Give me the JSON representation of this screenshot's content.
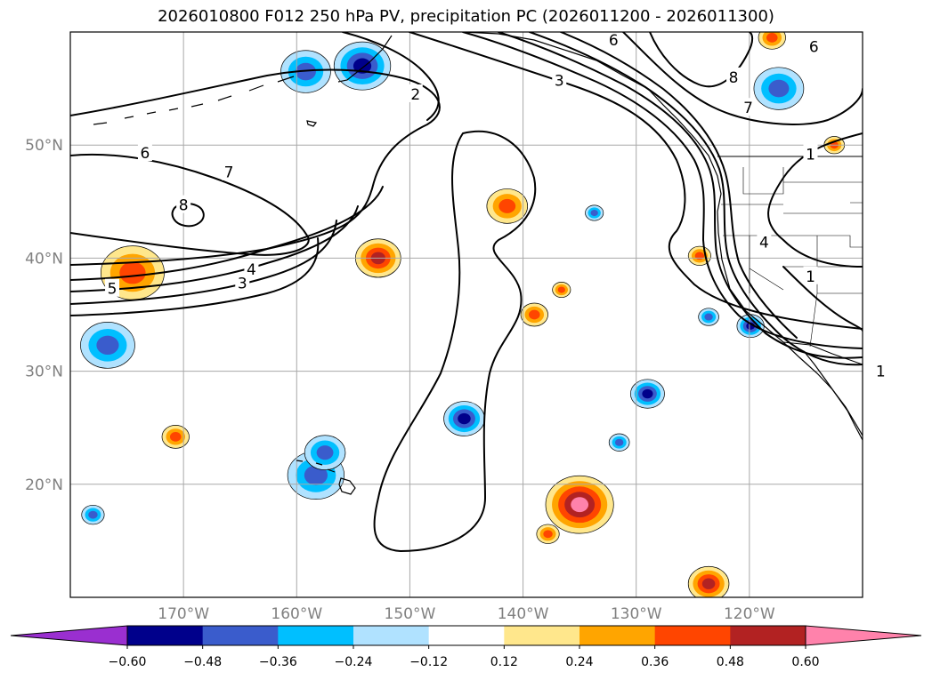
{
  "title": "2026010800 F012 250 hPa PV, precipitation PC (2026011200 - 2026011300)",
  "chart_data": {
    "type": "map",
    "projection": "plate carree",
    "lon_range": [
      -180,
      -110
    ],
    "lat_range": [
      10,
      60
    ],
    "x_ticks": [
      {
        "lon": -170,
        "label": "170°W"
      },
      {
        "lon": -160,
        "label": "160°W"
      },
      {
        "lon": -150,
        "label": "150°W"
      },
      {
        "lon": -140,
        "label": "140°W"
      },
      {
        "lon": -130,
        "label": "130°W"
      },
      {
        "lon": -120,
        "label": "120°W"
      }
    ],
    "y_ticks": [
      {
        "lat": 20,
        "label": "20°N"
      },
      {
        "lat": 30,
        "label": "30°N"
      },
      {
        "lat": 40,
        "label": "40°N"
      },
      {
        "lat": 50,
        "label": "50°N"
      }
    ],
    "grid": true,
    "pv_contours": {
      "variable": "250 hPa PV",
      "levels": [
        1,
        2,
        3,
        4,
        5,
        6,
        7,
        8
      ],
      "labels": [
        {
          "text": "2",
          "lon": -149.5,
          "lat": 54.5
        },
        {
          "text": "3",
          "lon": -136.8,
          "lat": 55.7
        },
        {
          "text": "6",
          "lon": -173.4,
          "lat": 49.3
        },
        {
          "text": "7",
          "lon": -166.0,
          "lat": 47.6
        },
        {
          "text": "8",
          "lon": -170.0,
          "lat": 44.7
        },
        {
          "text": "4",
          "lon": -164.0,
          "lat": 39.0
        },
        {
          "text": "3",
          "lon": -164.8,
          "lat": 37.8
        },
        {
          "text": "5",
          "lon": -176.3,
          "lat": 37.3
        },
        {
          "text": "6",
          "lon": -132.0,
          "lat": 59.3
        },
        {
          "text": "8",
          "lon": -121.4,
          "lat": 56.0
        },
        {
          "text": "7",
          "lon": -120.1,
          "lat": 53.3
        },
        {
          "text": "6",
          "lon": -114.3,
          "lat": 58.7
        },
        {
          "text": "1",
          "lon": -114.6,
          "lat": 49.2
        },
        {
          "text": "4",
          "lon": -118.7,
          "lat": 41.4
        },
        {
          "text": "1",
          "lon": -114.6,
          "lat": 38.4
        },
        {
          "text": "1",
          "lon": -108.4,
          "lat": 30.0
        }
      ]
    },
    "shading": {
      "variable": "precipitation PC",
      "colorbar": {
        "extend": "both",
        "bounds": [
          -0.6,
          -0.48,
          -0.36,
          -0.24,
          -0.12,
          0.12,
          0.24,
          0.36,
          0.48,
          0.6
        ],
        "tick_labels": [
          "−0.60",
          "−0.48",
          "−0.36",
          "−0.24",
          "−0.12",
          "0.12",
          "0.24",
          "0.36",
          "0.48",
          "0.60"
        ],
        "colors": [
          "#9a2fd0",
          "#00008b",
          "#3a5ccc",
          "#00bfff",
          "#b0e2ff",
          "#ffffff",
          "#ffe78c",
          "#ffa500",
          "#ff4500",
          "#b22222",
          "#ff82ab"
        ]
      },
      "blobs": [
        {
          "lon": -170.7,
          "lat": 24.2,
          "r": 1.2,
          "level": 0.36
        },
        {
          "lon": -178.0,
          "lat": 17.3,
          "r": 1.0,
          "level": -0.36
        },
        {
          "lon": -158.3,
          "lat": 20.8,
          "r": 2.5,
          "level": -0.36
        },
        {
          "lon": -157.5,
          "lat": 22.8,
          "r": 1.8,
          "level": -0.36
        },
        {
          "lon": -145.2,
          "lat": 25.8,
          "r": 1.8,
          "level": -0.48
        },
        {
          "lon": -129.0,
          "lat": 28.0,
          "r": 1.5,
          "level": -0.48
        },
        {
          "lon": -135.0,
          "lat": 18.2,
          "r": 3.0,
          "level": 0.6
        },
        {
          "lon": -137.8,
          "lat": 15.6,
          "r": 1.0,
          "level": 0.36
        },
        {
          "lon": -123.6,
          "lat": 11.2,
          "r": 1.8,
          "level": 0.48
        },
        {
          "lon": -152.8,
          "lat": 40.0,
          "r": 2.0,
          "level": 0.48
        },
        {
          "lon": -141.4,
          "lat": 44.6,
          "r": 1.8,
          "level": 0.36
        },
        {
          "lon": -139.0,
          "lat": 35.0,
          "r": 1.2,
          "level": 0.36
        },
        {
          "lon": -136.6,
          "lat": 37.2,
          "r": 0.8,
          "level": 0.36
        },
        {
          "lon": -124.4,
          "lat": 40.2,
          "r": 1.0,
          "level": 0.36
        },
        {
          "lon": -133.7,
          "lat": 44.0,
          "r": 0.8,
          "level": -0.36
        },
        {
          "lon": -174.5,
          "lat": 38.7,
          "r": 2.8,
          "level": 0.36
        },
        {
          "lon": -176.7,
          "lat": 32.3,
          "r": 2.4,
          "level": -0.36
        },
        {
          "lon": -159.2,
          "lat": 56.5,
          "r": 2.2,
          "level": -0.36
        },
        {
          "lon": -154.2,
          "lat": 57.0,
          "r": 2.5,
          "level": -0.48
        },
        {
          "lon": -117.4,
          "lat": 55.0,
          "r": 2.2,
          "level": -0.36
        },
        {
          "lon": -119.9,
          "lat": 34.0,
          "r": 1.2,
          "level": -0.48
        },
        {
          "lon": -123.6,
          "lat": 34.8,
          "r": 0.9,
          "level": -0.36
        },
        {
          "lon": -131.5,
          "lat": 23.7,
          "r": 0.9,
          "level": -0.36
        },
        {
          "lon": -112.5,
          "lat": 50.0,
          "r": 0.9,
          "level": 0.36
        },
        {
          "lon": -118.0,
          "lat": 59.5,
          "r": 1.2,
          "level": 0.36
        }
      ]
    },
    "overlays": [
      "coastlines",
      "country borders",
      "state borders"
    ]
  }
}
